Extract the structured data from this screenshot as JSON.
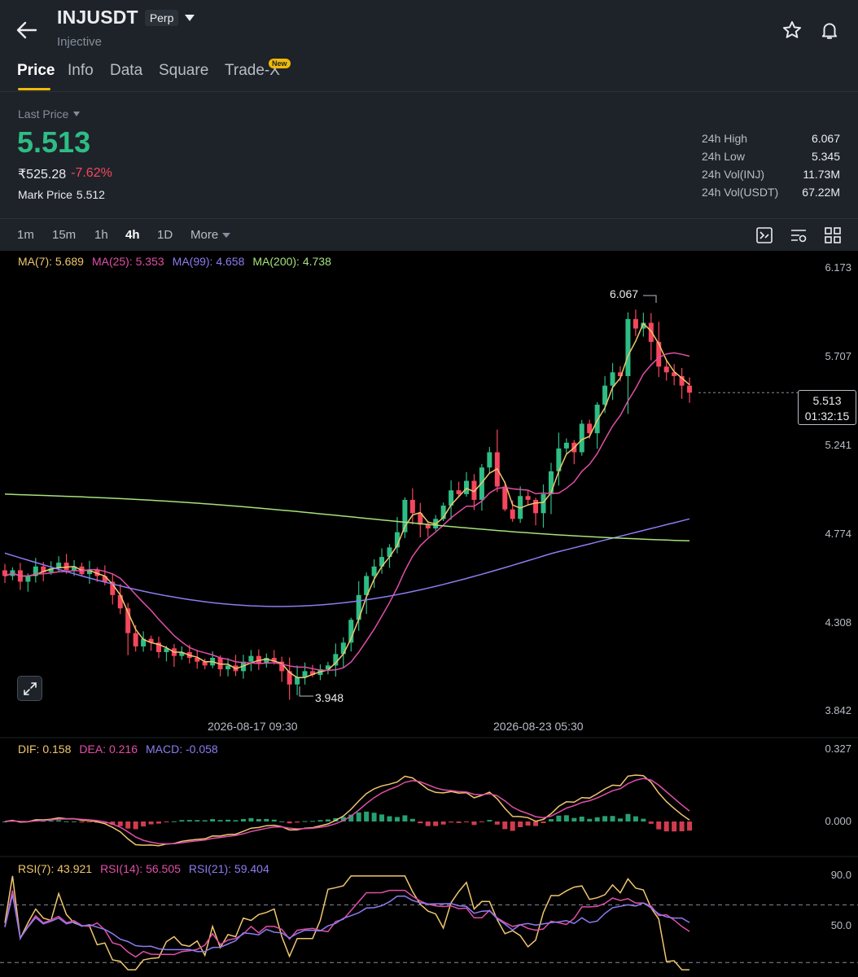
{
  "header": {
    "symbol": "INJUSDT",
    "contract_type": "Perp",
    "name": "Injective",
    "icons": [
      "back-arrow-icon",
      "star-icon",
      "bell-icon",
      "chevron-down-icon"
    ]
  },
  "tabs": [
    {
      "label": "Price",
      "active": true
    },
    {
      "label": "Info",
      "active": false
    },
    {
      "label": "Data",
      "active": false
    },
    {
      "label": "Square",
      "active": false
    },
    {
      "label": "Trade-X",
      "active": false,
      "badge": "New"
    }
  ],
  "ticker": {
    "last_price_label": "Last Price",
    "last_price": "5.513",
    "fiat_price": "₹525.28",
    "change_pct": "-7.62%",
    "mark_price_label": "Mark Price",
    "mark_price": "5.512",
    "stats": [
      {
        "label": "24h High",
        "value": "6.067"
      },
      {
        "label": "24h Low",
        "value": "5.345"
      },
      {
        "label": "24h Vol(INJ)",
        "value": "11.73M"
      },
      {
        "label": "24h Vol(USDT)",
        "value": "67.22M"
      }
    ]
  },
  "intervals": [
    {
      "label": "1m",
      "active": false
    },
    {
      "label": "15m",
      "active": false
    },
    {
      "label": "1h",
      "active": false
    },
    {
      "label": "4h",
      "active": true
    },
    {
      "label": "1D",
      "active": false
    },
    {
      "label": "More",
      "active": false
    }
  ],
  "toolbar_icons": [
    "indicator-settings-icon",
    "chart-style-icon",
    "layout-grid-icon"
  ],
  "ma_legend": [
    {
      "label": "MA(7): 5.689",
      "color": "#f0c66e"
    },
    {
      "label": "MA(25): 5.353",
      "color": "#e04fa8"
    },
    {
      "label": "MA(99): 4.658",
      "color": "#8d7cf0"
    },
    {
      "label": "MA(200): 4.738",
      "color": "#a6e27a"
    }
  ],
  "macd_legend": [
    {
      "label": "DIF: 0.158",
      "color": "#f0c66e"
    },
    {
      "label": "DEA: 0.216",
      "color": "#e04fa8"
    },
    {
      "label": "MACD: -0.058",
      "color": "#8d7cf0"
    }
  ],
  "rsi_legend": [
    {
      "label": "RSI(7): 43.921",
      "color": "#f0c66e"
    },
    {
      "label": "RSI(14): 56.505",
      "color": "#e04fa8"
    },
    {
      "label": "RSI(21): 59.404",
      "color": "#8d7cf0"
    }
  ],
  "price_axis": [
    "6.173",
    "5.707",
    "5.241",
    "4.774",
    "4.308",
    "3.842"
  ],
  "macd_axis": [
    "0.327",
    "0.000"
  ],
  "rsi_axis": [
    "90.0",
    "50.0"
  ],
  "time_axis": [
    "2026-08-17 09:30",
    "2026-08-23 05:30"
  ],
  "current_price_box": {
    "price": "5.513",
    "countdown": "01:32:15"
  },
  "high_marker": "6.067",
  "low_marker": "3.948",
  "colors": {
    "up": "#2ebd85",
    "down": "#f6465d",
    "accent": "#f0b90b"
  },
  "chart_data": {
    "type": "candlestick",
    "interval": "4h",
    "y_range": [
      3.842,
      6.173
    ],
    "ohlc_close": [
      4.55,
      4.58,
      4.52,
      4.55,
      4.6,
      4.57,
      4.59,
      4.62,
      4.58,
      4.6,
      4.56,
      4.58,
      4.55,
      4.52,
      4.45,
      4.38,
      4.25,
      4.18,
      4.22,
      4.2,
      4.15,
      4.17,
      4.13,
      4.15,
      4.12,
      4.1,
      4.08,
      4.12,
      4.06,
      4.08,
      4.05,
      4.1,
      4.13,
      4.09,
      4.12,
      4.1,
      4.05,
      3.98,
      4.02,
      4.05,
      4.03,
      4.06,
      4.08,
      4.14,
      4.2,
      4.32,
      4.45,
      4.55,
      4.6,
      4.65,
      4.7,
      4.78,
      4.95,
      4.88,
      4.82,
      4.8,
      4.85,
      4.92,
      5.0,
      4.98,
      5.05,
      4.95,
      5.12,
      5.2,
      5.02,
      4.9,
      4.85,
      4.97,
      4.95,
      4.88,
      4.98,
      5.1,
      5.22,
      5.25,
      5.2,
      5.35,
      5.3,
      5.45,
      5.55,
      5.62,
      5.6,
      5.9,
      5.85,
      5.88,
      5.78,
      5.65,
      5.62,
      5.6,
      5.55,
      5.513
    ],
    "ma_values": {
      "MA(7)": 5.689,
      "MA(25)": 5.353,
      "MA(99)": 4.658,
      "MA(200)": 4.738
    },
    "high": 6.067,
    "low": 3.948,
    "last": 5.513
  }
}
